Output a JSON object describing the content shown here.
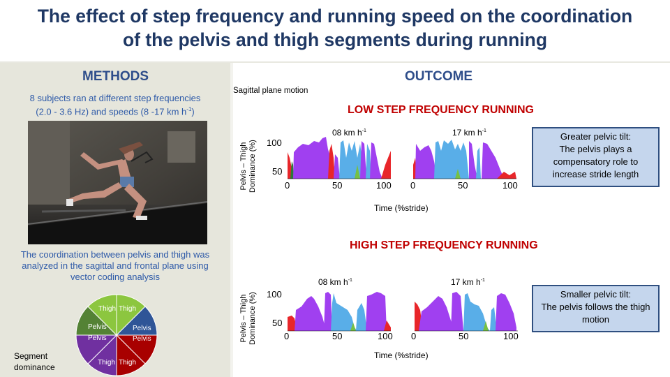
{
  "title": {
    "line1": "The effect of step frequency and running speed on the coordination",
    "line2": "of the pelvis and thigh segments during running"
  },
  "methods": {
    "heading": "METHODS",
    "intro_line1": "8 subjects ran at different step frequencies",
    "intro_line2_pre": "(2.0 - 3.6 Hz) and speeds (8 -17 km h",
    "intro_line2_sup": "-1",
    "intro_line2_post": ")",
    "analysis_line1": "The coordination between pelvis and thigh was",
    "analysis_line2": "analyzed in the sagittal and frontal plane using",
    "analysis_line3": "vector coding analysis",
    "wheel_labels": [
      "Thigh",
      "Thigh",
      "Pelvis",
      "Pelvis",
      "Pelvis",
      "Pelvis",
      "Thigh",
      "Thigh"
    ],
    "legend_line1": "Segment",
    "legend_line2": "dominance",
    "colors": {
      "light_green": "#8cc63f",
      "blue": "#2f5597",
      "dark_red": "#a80000",
      "purple": "#7030a0",
      "green": "#548235"
    }
  },
  "outcome": {
    "heading": "OUTCOME",
    "plane_label": "Sagittal plane motion",
    "low_title": "LOW STEP FREQUENCY RUNNING",
    "high_title": "HIGH STEP FREQUENCY RUNNING",
    "speed_08": "08 km h",
    "speed_17": "17 km h",
    "speed_sup": "-1",
    "ylabel_line1": "Pelvis – Thigh",
    "ylabel_line2": "Dominance (%)",
    "xlabel": "Time (%stride)",
    "ytick_top": "100",
    "ytick_bottom": "50",
    "xticks": [
      "0",
      "50",
      "100"
    ],
    "low_callout": [
      "Greater pelvic tilt:",
      "The pelvis plays a",
      "compensatory role to",
      "increase stride length"
    ],
    "high_callout": [
      "Smaller pelvic tilt:",
      "The pelvis follows the thigh",
      "motion"
    ],
    "colors": {
      "purple": "#a040f0",
      "light_blue": "#59aee8",
      "red": "#e8262a",
      "green": "#76c043",
      "dark_green": "#2d7a3a"
    }
  }
}
